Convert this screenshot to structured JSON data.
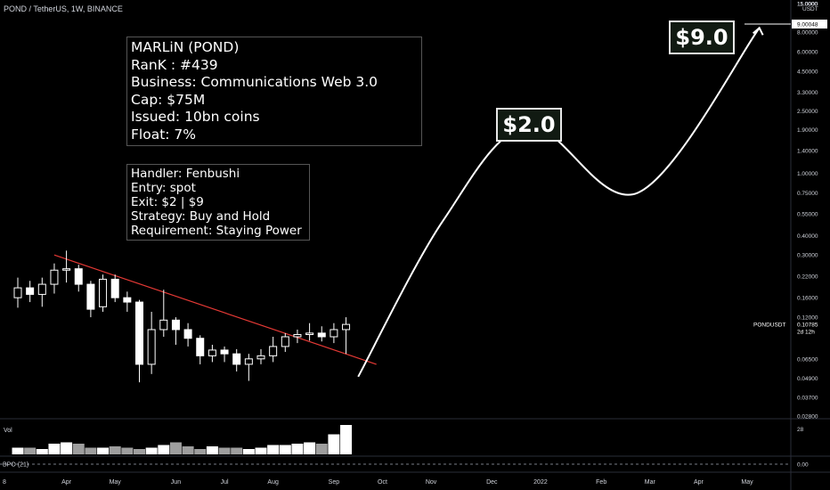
{
  "header": {
    "symbol_title": "POND / TetherUS, 1W, BINANCE"
  },
  "info_box": {
    "lines": [
      "MARLiN (POND)",
      "RanK : #439",
      "Business: Communications Web 3.0",
      "Cap: $75M",
      "Issued: 10bn coins",
      "Float: 7%"
    ]
  },
  "trade_box": {
    "lines": [
      "Handler: Fenbushi",
      "Entry: spot",
      "Exit: $2 | $9",
      "Strategy: Buy and Hold",
      "Requirement: Staying Power"
    ]
  },
  "targets": {
    "first": "$2.0",
    "second": "$9.0"
  },
  "colors": {
    "background": "#000000",
    "trendline": "#e53935",
    "projection": "#ffffff",
    "volume_down": "#9e9e9e",
    "volume_up": "#ffffff",
    "price_tag": "#ffffff"
  },
  "chart_data": {
    "type": "candlestick",
    "title": "POND / TetherUS, 1W, BINANCE",
    "scale": "log",
    "y_axis_unit": "USDT",
    "y_ticks": [
      "15.0000",
      "11.0000",
      "8.00000",
      "6.00000",
      "4.50000",
      "3.30000",
      "2.50000",
      "1.90000",
      "1.40000",
      "1.00000",
      "0.75000",
      "0.55000",
      "0.40000",
      "0.30000",
      "0.22000",
      "0.16000",
      "0.12000",
      "0.06500",
      "0.04900",
      "0.03700",
      "0.02800"
    ],
    "x_ticks": [
      "8",
      "Apr",
      "May",
      "Jun",
      "Jul",
      "Aug",
      "Sep",
      "Oct",
      "Nov",
      "Dec",
      "2022",
      "Feb",
      "Mar",
      "Apr",
      "May"
    ],
    "last_price": "0.10785",
    "last_price_label": "PONDUSDT",
    "countdown": "2d 12h",
    "target_price_tag": "9.00048",
    "candles": [
      {
        "o": 0.16,
        "c": 0.185,
        "h": 0.215,
        "l": 0.138
      },
      {
        "o": 0.185,
        "c": 0.168,
        "h": 0.205,
        "l": 0.15
      },
      {
        "o": 0.168,
        "c": 0.195,
        "h": 0.215,
        "l": 0.14
      },
      {
        "o": 0.195,
        "c": 0.24,
        "h": 0.265,
        "l": 0.17
      },
      {
        "o": 0.24,
        "c": 0.245,
        "h": 0.32,
        "l": 0.2
      },
      {
        "o": 0.245,
        "c": 0.195,
        "h": 0.26,
        "l": 0.175
      },
      {
        "o": 0.195,
        "c": 0.135,
        "h": 0.205,
        "l": 0.12
      },
      {
        "o": 0.14,
        "c": 0.21,
        "h": 0.225,
        "l": 0.13
      },
      {
        "o": 0.21,
        "c": 0.16,
        "h": 0.225,
        "l": 0.15
      },
      {
        "o": 0.16,
        "c": 0.15,
        "h": 0.175,
        "l": 0.13
      },
      {
        "o": 0.15,
        "c": 0.06,
        "h": 0.155,
        "l": 0.046
      },
      {
        "o": 0.06,
        "c": 0.1,
        "h": 0.13,
        "l": 0.052
      },
      {
        "o": 0.1,
        "c": 0.115,
        "h": 0.18,
        "l": 0.09
      },
      {
        "o": 0.115,
        "c": 0.1,
        "h": 0.12,
        "l": 0.08
      },
      {
        "o": 0.1,
        "c": 0.088,
        "h": 0.11,
        "l": 0.078
      },
      {
        "o": 0.088,
        "c": 0.068,
        "h": 0.092,
        "l": 0.06
      },
      {
        "o": 0.068,
        "c": 0.074,
        "h": 0.08,
        "l": 0.062
      },
      {
        "o": 0.074,
        "c": 0.07,
        "h": 0.078,
        "l": 0.062
      },
      {
        "o": 0.07,
        "c": 0.06,
        "h": 0.075,
        "l": 0.054
      },
      {
        "o": 0.06,
        "c": 0.065,
        "h": 0.07,
        "l": 0.047
      },
      {
        "o": 0.065,
        "c": 0.068,
        "h": 0.075,
        "l": 0.06
      },
      {
        "o": 0.068,
        "c": 0.078,
        "h": 0.09,
        "l": 0.062
      },
      {
        "o": 0.078,
        "c": 0.09,
        "h": 0.095,
        "l": 0.072
      },
      {
        "o": 0.09,
        "c": 0.093,
        "h": 0.1,
        "l": 0.082
      },
      {
        "o": 0.093,
        "c": 0.095,
        "h": 0.11,
        "l": 0.085
      },
      {
        "o": 0.095,
        "c": 0.09,
        "h": 0.105,
        "l": 0.084
      },
      {
        "o": 0.09,
        "c": 0.1,
        "h": 0.11,
        "l": 0.082
      },
      {
        "o": 0.1,
        "c": 0.108,
        "h": 0.12,
        "l": 0.07
      }
    ],
    "volume": {
      "label": "Vol",
      "axis_max": "28",
      "values": [
        5,
        5,
        4,
        8,
        9,
        8,
        5,
        5,
        6,
        5,
        4,
        5,
        7,
        9,
        6,
        4,
        6,
        5,
        5,
        4,
        5,
        7,
        7,
        8,
        9,
        8,
        15,
        22
      ],
      "up": [
        true,
        false,
        true,
        true,
        true,
        false,
        false,
        true,
        false,
        false,
        false,
        true,
        true,
        false,
        false,
        false,
        true,
        false,
        false,
        true,
        true,
        true,
        true,
        true,
        true,
        false,
        true,
        true
      ]
    },
    "indicator": {
      "label": "BPO (21)",
      "value": "0.00"
    },
    "trendline": {
      "start": {
        "bar": 3,
        "price": 0.3
      },
      "end": {
        "bar": 29.5,
        "price": 0.06
      }
    },
    "projection_points": [
      {
        "bar": 28,
        "price": 0.05
      },
      {
        "bar": 35,
        "price": 0.5
      },
      {
        "bar": 42,
        "price": 2.0
      },
      {
        "bar": 51,
        "price": 0.75
      },
      {
        "bar": 61,
        "price": 8.5
      }
    ]
  }
}
